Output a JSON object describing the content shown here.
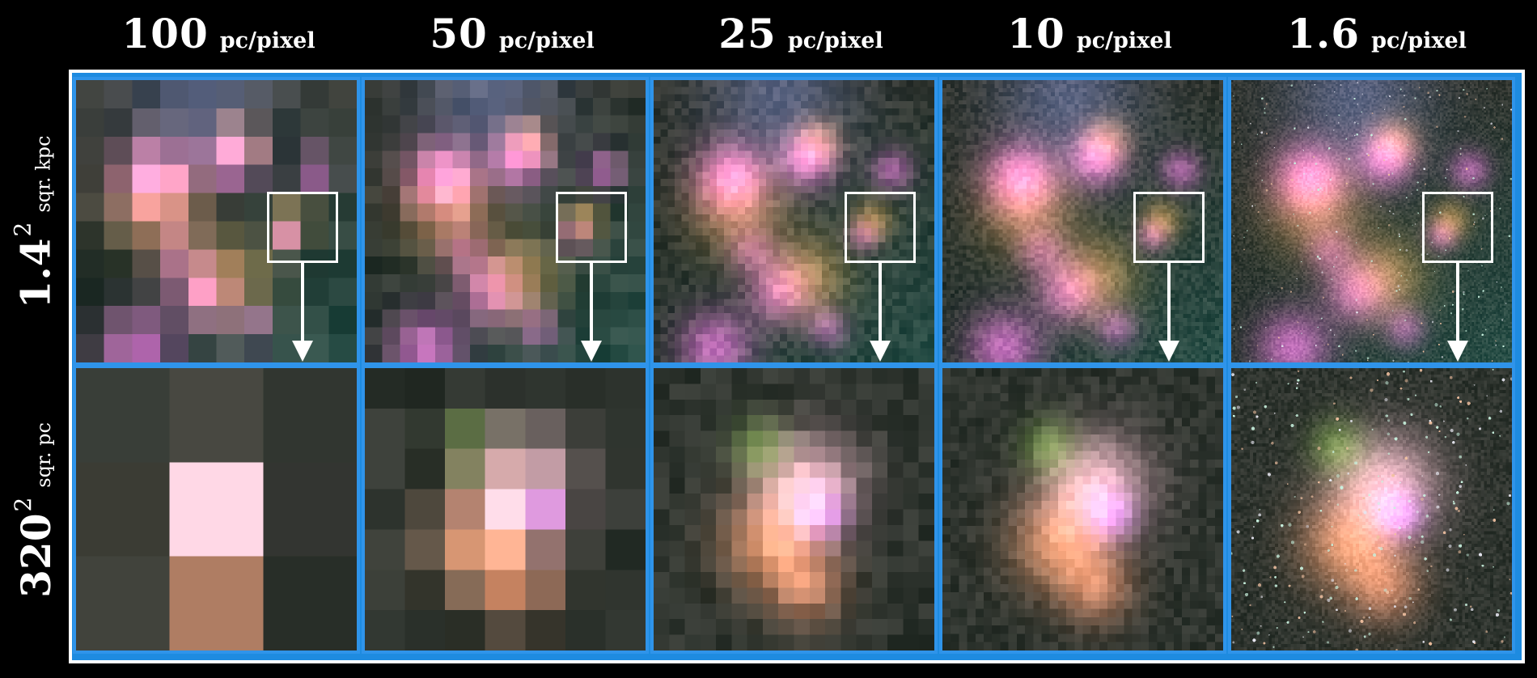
{
  "columns": [
    {
      "value": "100",
      "unit": "pc/pixel",
      "grid": 10
    },
    {
      "value": "50",
      "unit": "pc/pixel",
      "grid": 16
    },
    {
      "value": "25",
      "unit": "pc/pixel",
      "grid": 40
    },
    {
      "value": "10",
      "unit": "pc/pixel",
      "grid": 70
    },
    {
      "value": "1.6",
      "unit": "pc/pixel",
      "grid": 140
    }
  ],
  "zoom_grid": [
    3,
    7,
    18,
    34,
    90
  ],
  "rows": [
    {
      "base": "1.4",
      "exponent": "2",
      "unit": "sqr. kpc"
    },
    {
      "base": "320",
      "exponent": "2",
      "unit": "sqr. pc"
    }
  ],
  "colors": {
    "panel_border": "#2f94ea",
    "frame_border": "#ffffff",
    "nebula_pink": "#e16fd6",
    "nebula_orange": "#e0a070",
    "field_green": "#3d5a4e",
    "background": "#000000"
  }
}
